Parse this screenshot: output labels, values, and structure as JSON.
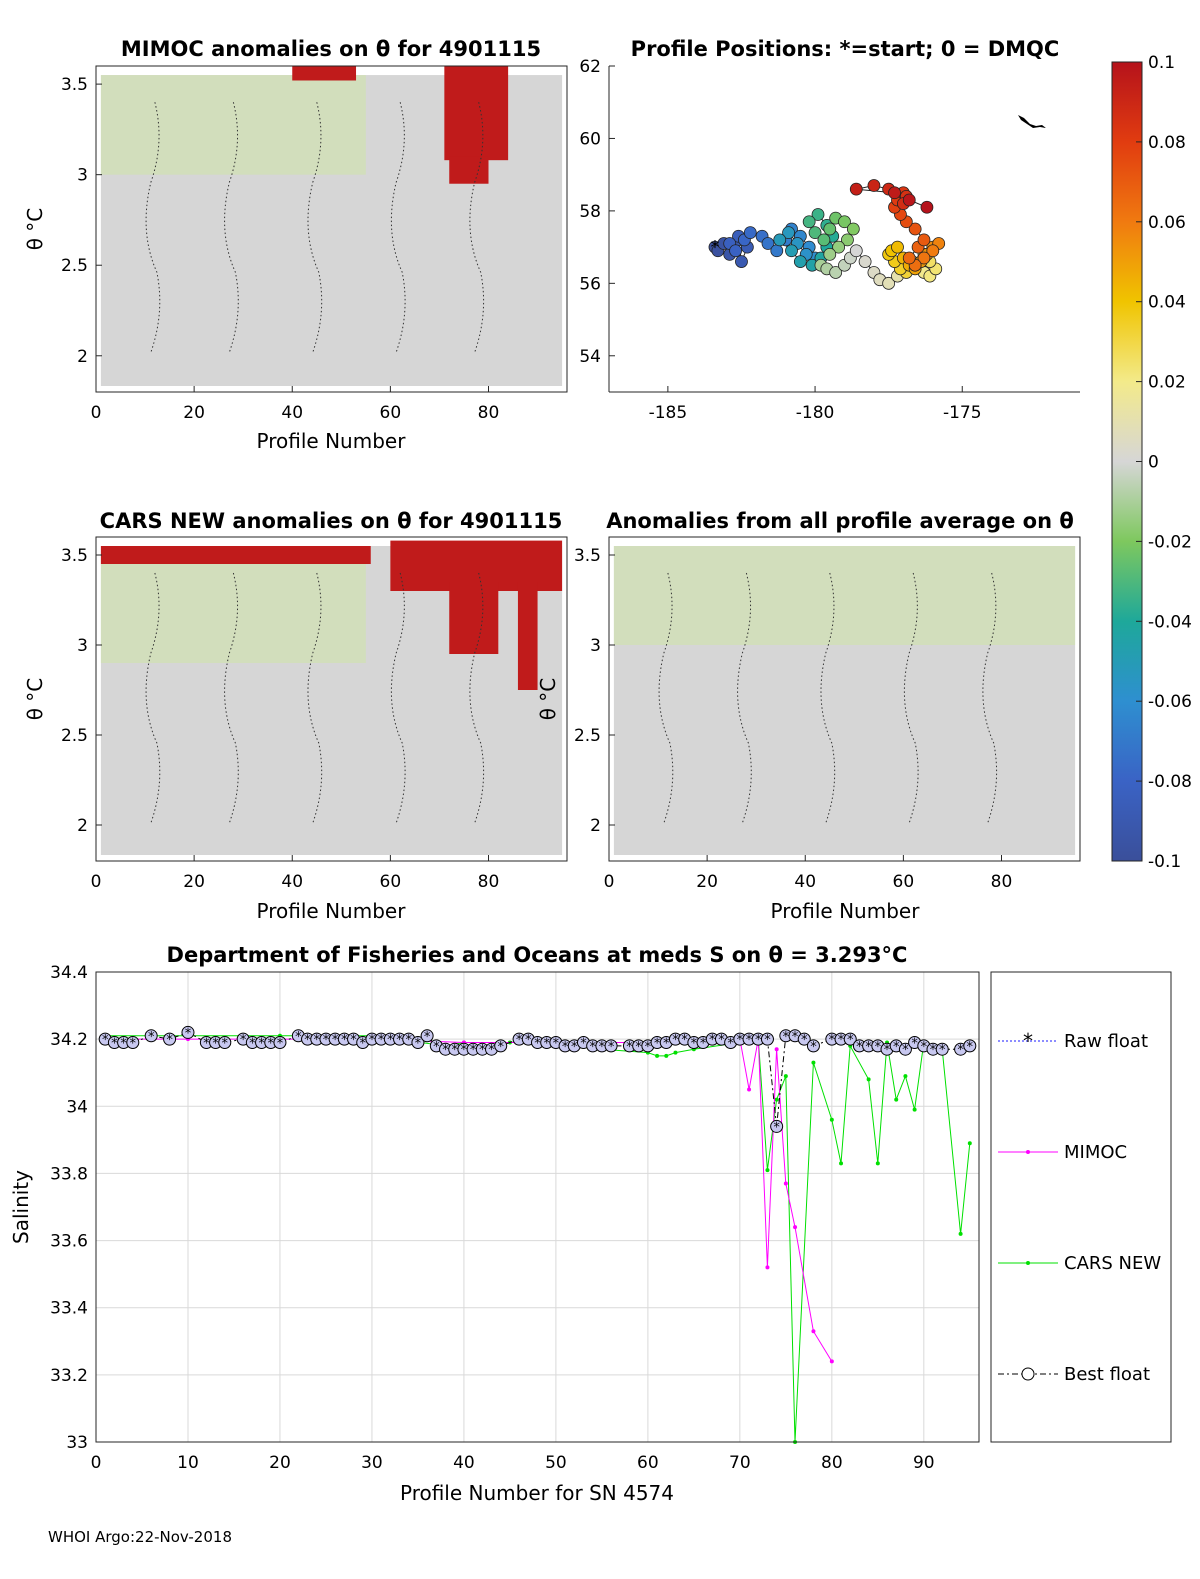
{
  "footer": "WHOI Argo:22-Nov-2018",
  "colors": {
    "gray_field": "#d6d6d6",
    "light_green": "#cfe6a8",
    "light_yellow": "#f0e6a0",
    "dark_red": "#c01b1b"
  },
  "chart_data": [
    {
      "id": "mimoc",
      "type": "heatmap",
      "title": "MIMOC anomalies on θ  for 4901115",
      "xlabel": "Profile Number",
      "ylabel": "θ °C",
      "xlim": [
        0,
        96
      ],
      "ylim": [
        1.8,
        3.6
      ],
      "xticks": [
        "0",
        "20",
        "40",
        "60",
        "80"
      ],
      "yticks": [
        "3.5",
        "3",
        "2.5",
        "2"
      ],
      "red_blocks": [
        [
          40,
          53,
          3.52,
          3.62
        ],
        [
          71,
          84,
          3.08,
          3.6
        ],
        [
          72,
          80,
          2.95,
          3.1
        ]
      ],
      "green_bands": [
        [
          1,
          55,
          3.0,
          3.55
        ]
      ]
    },
    {
      "id": "positions",
      "type": "scatter",
      "title": "Profile Positions: *=start; 0 = DMQC",
      "xlim": [
        -187,
        -171
      ],
      "ylim": [
        53,
        62
      ],
      "xticks": [
        "-185",
        "-180",
        "-175"
      ],
      "yticks": [
        "62",
        "60",
        "58",
        "56",
        "54"
      ],
      "lon": [
        -183.4,
        -183.3,
        -183.1,
        -182.9,
        -182.6,
        -182.5,
        -182.3,
        -182.6,
        -182.9,
        -182.7,
        -182.4,
        -182.2,
        -181.8,
        -181.6,
        -181.3,
        -181.0,
        -180.8,
        -180.5,
        -180.2,
        -180.0,
        -180.3,
        -180.6,
        -180.9,
        -181.2,
        -180.8,
        -180.5,
        -180.1,
        -179.8,
        -179.6,
        -179.4,
        -179.6,
        -179.9,
        -180.2,
        -180.0,
        -179.7,
        -179.5,
        -179.3,
        -179.0,
        -178.7,
        -178.9,
        -179.2,
        -179.5,
        -179.8,
        -179.6,
        -179.3,
        -179.0,
        -178.8,
        -178.6,
        -178.3,
        -178.0,
        -177.8,
        -177.5,
        -177.2,
        -177.0,
        -176.7,
        -176.5,
        -176.3,
        -176.1,
        -175.9,
        -176.1,
        -176.3,
        -176.6,
        -176.9,
        -177.1,
        -177.3,
        -177.5,
        -177.4,
        -177.2,
        -177.0,
        -176.8,
        -176.6,
        -176.4,
        -176.2,
        -176.0,
        -175.8,
        -176.0,
        -176.3,
        -176.6,
        -176.8,
        -176.5,
        -176.3,
        -176.6,
        -176.9,
        -177.1,
        -177.3,
        -177.2,
        -177.0,
        -176.9,
        -177.0,
        -177.5,
        -178.0,
        -178.6,
        -177.3,
        -176.8,
        -176.2
      ],
      "lat": [
        57.0,
        56.9,
        57.1,
        56.8,
        57.2,
        56.6,
        57.0,
        57.3,
        57.1,
        56.9,
        57.2,
        57.4,
        57.3,
        57.1,
        56.9,
        57.2,
        57.5,
        57.3,
        57.0,
        56.7,
        56.8,
        57.1,
        57.4,
        57.2,
        56.9,
        56.6,
        56.5,
        56.7,
        57.0,
        57.3,
        57.6,
        57.9,
        57.7,
        57.4,
        57.2,
        57.5,
        57.8,
        57.7,
        57.5,
        57.2,
        57.0,
        56.8,
        56.5,
        56.4,
        56.3,
        56.5,
        56.7,
        56.9,
        56.6,
        56.3,
        56.1,
        56.0,
        56.2,
        56.4,
        56.6,
        56.5,
        56.3,
        56.2,
        56.4,
        56.6,
        56.8,
        56.5,
        56.3,
        56.4,
        56.6,
        56.8,
        56.9,
        57.0,
        56.7,
        56.5,
        56.4,
        56.6,
        56.8,
        57.0,
        57.1,
        56.9,
        56.7,
        56.5,
        56.7,
        57.0,
        57.2,
        57.5,
        57.7,
        57.9,
        58.1,
        58.3,
        58.5,
        58.4,
        58.2,
        58.6,
        58.7,
        58.6,
        58.5,
        58.3,
        58.1
      ],
      "color_range": [
        -0.1,
        0.1
      ],
      "colorbar_ticks": [
        "0.1",
        "0.08",
        "0.06",
        "0.04",
        "0.02",
        "0",
        "-0.02",
        "-0.04",
        "-0.06",
        "-0.08",
        "-0.1"
      ]
    },
    {
      "id": "cars",
      "type": "heatmap",
      "title": "CARS NEW anomalies on θ for 4901115",
      "xlabel": "Profile Number",
      "ylabel": "θ °C",
      "xlim": [
        0,
        96
      ],
      "ylim": [
        1.8,
        3.6
      ],
      "xticks": [
        "0",
        "20",
        "40",
        "60",
        "80"
      ],
      "yticks": [
        "3.5",
        "3",
        "2.5",
        "2"
      ],
      "red_blocks": [
        [
          1,
          56,
          3.45,
          3.55
        ],
        [
          60,
          95,
          3.3,
          3.58
        ],
        [
          72,
          82,
          2.95,
          3.35
        ],
        [
          86,
          90,
          2.75,
          3.35
        ]
      ],
      "green_bands": [
        [
          1,
          55,
          2.9,
          3.5
        ]
      ]
    },
    {
      "id": "avg",
      "type": "heatmap",
      "title": "Anomalies from all profile average on θ",
      "xlabel": "Profile Number",
      "ylabel": "θ °C",
      "xlim": [
        0,
        96
      ],
      "ylim": [
        1.8,
        3.6
      ],
      "xticks": [
        "0",
        "20",
        "40",
        "60",
        "80"
      ],
      "yticks": [
        "3.5",
        "3",
        "2.5",
        "2"
      ],
      "red_blocks": [],
      "green_bands": [
        [
          1,
          95,
          3.0,
          3.55
        ]
      ]
    },
    {
      "id": "salinity",
      "type": "line",
      "title": "Department of Fisheries and Oceans at meds S on θ = 3.293°C",
      "xlabel": "Profile Number for SN 4574",
      "ylabel": "Salinity",
      "xlim": [
        0,
        96
      ],
      "ylim": [
        33,
        34.4
      ],
      "xticks": [
        "0",
        "10",
        "20",
        "30",
        "40",
        "50",
        "60",
        "70",
        "80",
        "90"
      ],
      "yticks": [
        "34.4",
        "34.2",
        "34",
        "33.8",
        "33.6",
        "33.4",
        "33.2",
        "33"
      ],
      "legend": [
        "Raw float",
        "MIMOC",
        "CARS NEW",
        "Best float"
      ],
      "legend_position": "right",
      "series": [
        {
          "name": "Best float",
          "x": [
            1,
            2,
            3,
            4,
            6,
            8,
            10,
            12,
            13,
            14,
            16,
            17,
            18,
            19,
            20,
            22,
            23,
            24,
            25,
            26,
            27,
            28,
            29,
            30,
            31,
            32,
            33,
            34,
            35,
            36,
            37,
            38,
            39,
            40,
            41,
            42,
            43,
            44,
            46,
            47,
            48,
            49,
            50,
            51,
            52,
            53,
            54,
            55,
            56,
            58,
            59,
            60,
            61,
            62,
            63,
            64,
            65,
            66,
            67,
            68,
            69,
            70,
            71,
            72,
            73,
            74,
            75,
            76,
            77,
            78,
            80,
            81,
            82,
            83,
            84,
            85,
            86,
            87,
            88,
            89,
            90,
            91,
            92,
            94,
            95
          ],
          "y": [
            34.2,
            34.19,
            34.19,
            34.19,
            34.21,
            34.2,
            34.22,
            34.19,
            34.19,
            34.19,
            34.2,
            34.19,
            34.19,
            34.19,
            34.19,
            34.21,
            34.2,
            34.2,
            34.2,
            34.2,
            34.2,
            34.2,
            34.19,
            34.2,
            34.2,
            34.2,
            34.2,
            34.2,
            34.19,
            34.21,
            34.18,
            34.17,
            34.17,
            34.17,
            34.17,
            34.17,
            34.17,
            34.18,
            34.2,
            34.2,
            34.19,
            34.19,
            34.19,
            34.18,
            34.18,
            34.19,
            34.18,
            34.18,
            34.18,
            34.18,
            34.18,
            34.18,
            34.19,
            34.19,
            34.2,
            34.2,
            34.19,
            34.19,
            34.2,
            34.2,
            34.19,
            34.2,
            34.2,
            34.2,
            34.2,
            33.94,
            34.21,
            34.21,
            34.2,
            34.18,
            34.2,
            34.2,
            34.2,
            34.18,
            34.18,
            34.18,
            34.17,
            34.18,
            34.17,
            34.19,
            34.18,
            34.17,
            34.17,
            34.17,
            34.18
          ]
        },
        {
          "name": "MIMOC",
          "x": [
            1,
            10,
            20,
            30,
            40,
            50,
            60,
            65,
            70,
            71,
            72,
            73,
            74,
            75,
            76,
            78,
            80
          ],
          "y": [
            34.2,
            34.2,
            34.2,
            34.2,
            34.19,
            34.19,
            34.19,
            34.19,
            34.2,
            34.05,
            34.2,
            33.52,
            34.17,
            33.77,
            33.64,
            33.33,
            33.24
          ]
        },
        {
          "name": "CARS NEW",
          "x": [
            1,
            10,
            20,
            30,
            38,
            40,
            45,
            50,
            55,
            60,
            61,
            62,
            63,
            65,
            70,
            72,
            73,
            74,
            75,
            76,
            78,
            80,
            81,
            82,
            84,
            85,
            86,
            87,
            88,
            89,
            90,
            91,
            92,
            94,
            95
          ],
          "y": [
            34.21,
            34.21,
            34.21,
            34.21,
            34.18,
            34.19,
            34.19,
            34.19,
            34.17,
            34.16,
            34.15,
            34.15,
            34.16,
            34.17,
            34.19,
            34.2,
            33.81,
            34.02,
            34.09,
            33.0,
            34.13,
            33.96,
            33.83,
            34.18,
            34.08,
            33.83,
            34.19,
            34.02,
            34.09,
            33.99,
            34.19,
            34.17,
            34.17,
            33.62,
            33.89
          ]
        }
      ]
    }
  ]
}
